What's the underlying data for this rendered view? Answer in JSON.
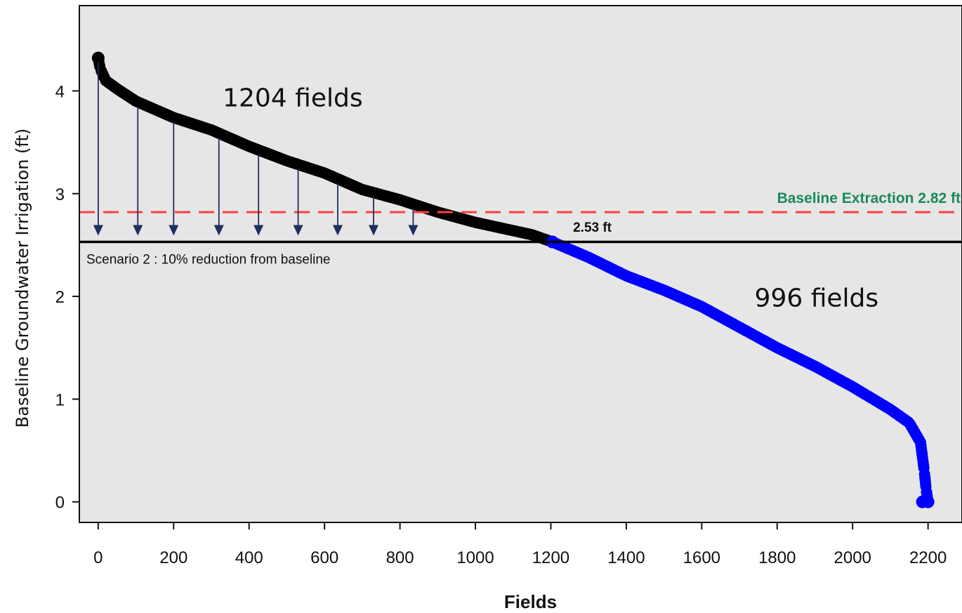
{
  "chart_data": {
    "type": "scatter",
    "xlabel": "Fields",
    "ylabel": "Baseline Groundwater Irrigation (ft)",
    "xlim": [
      -50,
      2290
    ],
    "ylim": [
      -0.2,
      4.83
    ],
    "x_ticks": [
      0,
      200,
      400,
      600,
      800,
      1000,
      1200,
      1400,
      1600,
      1800,
      2000,
      2200
    ],
    "y_ticks": [
      0,
      1,
      2,
      3,
      4
    ],
    "grid": false,
    "background_color": "#e6e6e6",
    "series": [
      {
        "color": "#000000",
        "x_range": [
          0,
          1204
        ],
        "points": [
          [
            0,
            4.32
          ],
          [
            5,
            4.22
          ],
          [
            20,
            4.1
          ],
          [
            50,
            4.02
          ],
          [
            100,
            3.9
          ],
          [
            200,
            3.74
          ],
          [
            300,
            3.62
          ],
          [
            400,
            3.46
          ],
          [
            500,
            3.32
          ],
          [
            600,
            3.2
          ],
          [
            700,
            3.04
          ],
          [
            800,
            2.94
          ],
          [
            900,
            2.82
          ],
          [
            1000,
            2.72
          ],
          [
            1100,
            2.64
          ],
          [
            1150,
            2.6
          ],
          [
            1204,
            2.53
          ]
        ]
      },
      {
        "color": "#0000ff",
        "x_range": [
          1205,
          2200
        ],
        "points": [
          [
            1204,
            2.53
          ],
          [
            1300,
            2.38
          ],
          [
            1400,
            2.2
          ],
          [
            1500,
            2.06
          ],
          [
            1600,
            1.9
          ],
          [
            1700,
            1.7
          ],
          [
            1800,
            1.5
          ],
          [
            1900,
            1.32
          ],
          [
            2000,
            1.12
          ],
          [
            2100,
            0.9
          ],
          [
            2150,
            0.77
          ],
          [
            2180,
            0.58
          ],
          [
            2190,
            0.3
          ],
          [
            2195,
            0.12
          ],
          [
            2200,
            0.0
          ]
        ]
      }
    ],
    "reference_lines": [
      {
        "y": 2.82,
        "style": "dashed",
        "color": "#ff4040",
        "label": "Baseline Extraction 2.82 ft",
        "label_color": "#1a8a5a"
      },
      {
        "y": 2.53,
        "style": "solid",
        "color": "#000000",
        "label": "Scenario 2 : 10% reduction from baseline"
      }
    ],
    "arrows": {
      "color": "#1f2f5f",
      "to_y": 2.53,
      "x": [
        0,
        105,
        200,
        320,
        425,
        530,
        635,
        730,
        835
      ]
    },
    "annotations": [
      {
        "text": "1204 fields",
        "x": 330,
        "y": 3.85,
        "style": "large"
      },
      {
        "text": "996 fields",
        "x": 1740,
        "y": 1.9,
        "style": "large"
      },
      {
        "text": "2.53 ft",
        "x": 1310,
        "y": 2.63,
        "style": "bold"
      }
    ]
  }
}
